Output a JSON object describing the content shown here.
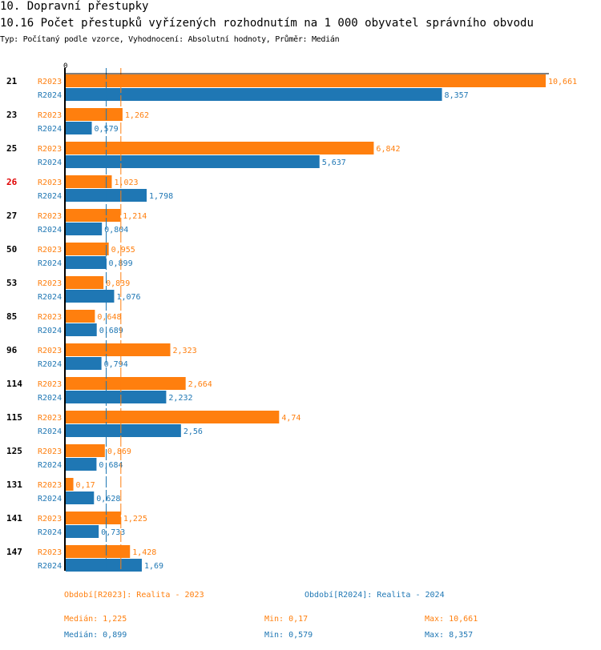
{
  "header": {
    "title": "10. Dopravní přestupky",
    "subtitle": "10.16 Počet přestupků vyřízených rozhodnutím na 1 000 obyvatel správního obvodu",
    "meta": "Typ: Počítaný podle vzorce, Vyhodnocení: Absolutní hodnoty, Průměr: Medián"
  },
  "colors": {
    "R2023": "#ff7f0e",
    "R2024": "#1f77b4",
    "highlight": "#e00000",
    "label": "#000000"
  },
  "chart_data": {
    "type": "bar",
    "orientation": "horizontal",
    "title": "10.16 Počet přestupků vyřízených rozhodnutím na 1 000 obyvatel správního obvodu",
    "xlabel": "",
    "ylabel": "",
    "axis_tick_label": "0",
    "xlim": [
      0,
      10.661
    ],
    "grid": false,
    "categories": [
      "21",
      "23",
      "25",
      "26",
      "27",
      "50",
      "53",
      "85",
      "96",
      "114",
      "115",
      "125",
      "131",
      "141",
      "147"
    ],
    "highlighted_category": "26",
    "series": [
      {
        "name": "R2023",
        "values": [
          10.661,
          1.262,
          6.842,
          1.023,
          1.214,
          0.955,
          0.839,
          0.648,
          2.323,
          2.664,
          4.74,
          0.869,
          0.17,
          1.225,
          1.428
        ],
        "labels": [
          "10,661",
          "1,262",
          "6,842",
          "1,023",
          "1,214",
          "0,955",
          "0,839",
          "0,648",
          "2,323",
          "2,664",
          "4,74",
          "0,869",
          "0,17",
          "1,225",
          "1,428"
        ]
      },
      {
        "name": "R2024",
        "values": [
          8.357,
          0.579,
          5.637,
          1.798,
          0.804,
          0.899,
          1.076,
          0.689,
          0.794,
          2.232,
          2.56,
          0.684,
          0.628,
          0.733,
          1.69
        ],
        "labels": [
          "8,357",
          "0,579",
          "5,637",
          "1,798",
          "0,804",
          "0,899",
          "1,076",
          "0,689",
          "0,794",
          "2,232",
          "2,56",
          "0,684",
          "0,628",
          "0,733",
          "1,69"
        ]
      }
    ],
    "reference_lines": [
      {
        "series": "R2023",
        "type": "median",
        "value": 1.225
      },
      {
        "series": "R2024",
        "type": "median",
        "value": 0.899
      }
    ]
  },
  "legend": {
    "r2023": "Období[R2023]: Realita - 2023",
    "r2024": "Období[R2024]: Realita - 2024"
  },
  "stats": {
    "r2023": {
      "median": "Medián: 1,225",
      "min": "Min: 0,17",
      "max": "Max: 10,661"
    },
    "r2024": {
      "median": "Medián: 0,899",
      "min": "Min: 0,579",
      "max": "Max: 8,357"
    }
  }
}
